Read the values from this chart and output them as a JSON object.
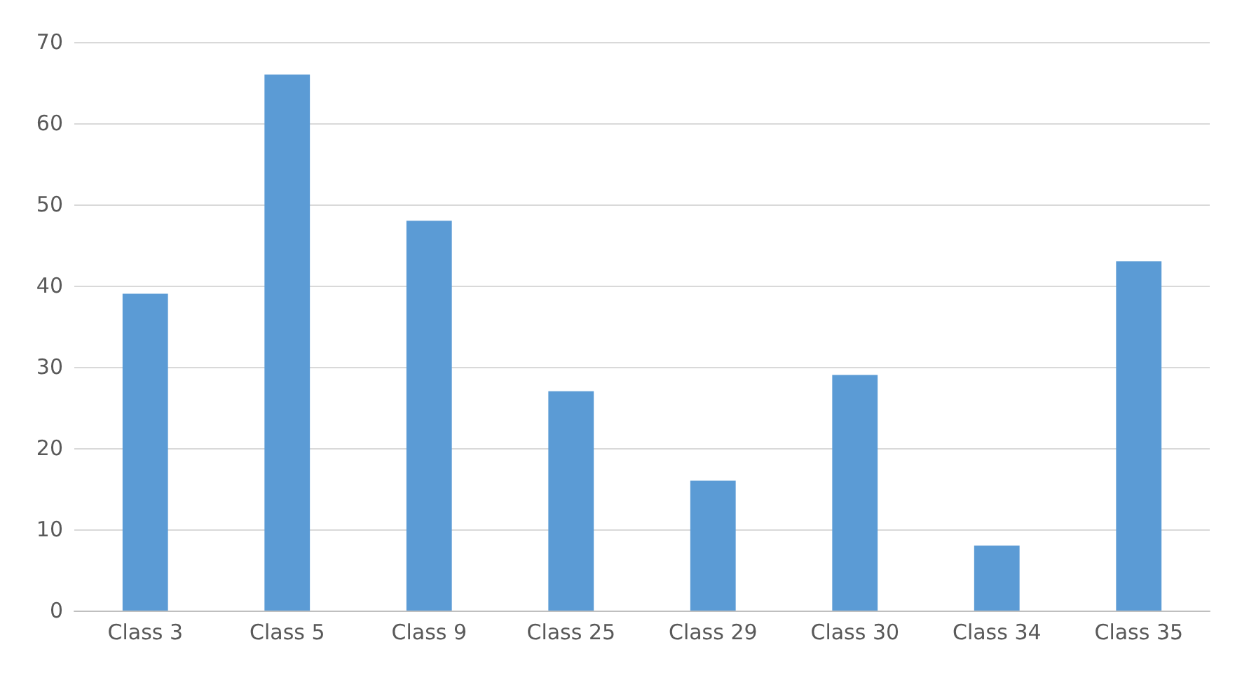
{
  "chart_data": {
    "type": "bar",
    "categories": [
      "Class 3",
      "Class 5",
      "Class 9",
      "Class 25",
      "Class 29",
      "Class 30",
      "Class 34",
      "Class 35"
    ],
    "values": [
      39,
      66,
      48,
      27,
      16,
      29,
      8,
      43
    ],
    "color": "#5b9bd5",
    "ylim": [
      0,
      70
    ],
    "yticks": [
      0,
      10,
      20,
      30,
      40,
      50,
      60,
      70
    ],
    "grid": "y"
  }
}
